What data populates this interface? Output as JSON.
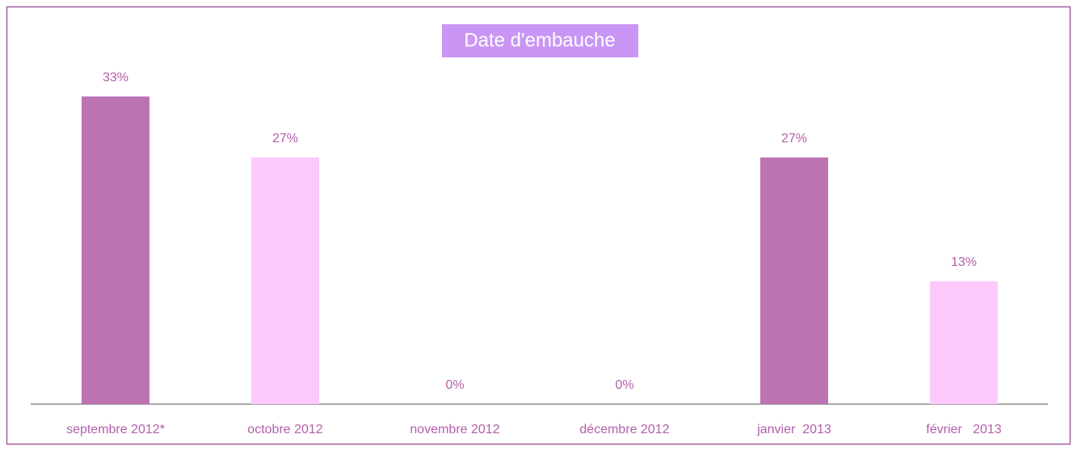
{
  "chart_data": {
    "type": "bar",
    "title": "Date d'embauche",
    "categories": [
      "septembre 2012*",
      "octobre 2012",
      "novembre 2012",
      "décembre 2012",
      "janvier  2013",
      "février   2013"
    ],
    "values": [
      33.3,
      26.7,
      0,
      0,
      26.7,
      13.3
    ],
    "value_labels": [
      "33%",
      "27%",
      "0%",
      "0%",
      "27%",
      "13%"
    ],
    "colors": [
      "#bc73b2",
      "#fdc9fd",
      "#bc73b2",
      "#fdc9fd",
      "#bc73b2",
      "#fdc9fd"
    ]
  }
}
